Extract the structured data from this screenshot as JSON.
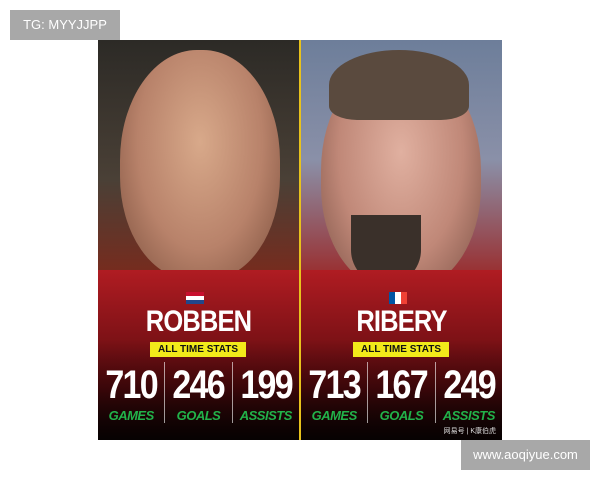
{
  "players": [
    {
      "name": "ROBBEN",
      "flag": "netherlands-flag-icon",
      "badge": "ALL TIME STATS",
      "stats": [
        {
          "value": "710",
          "label": "GAMES"
        },
        {
          "value": "246",
          "label": "GOALS"
        },
        {
          "value": "199",
          "label": "ASSISTS"
        }
      ]
    },
    {
      "name": "RIBERY",
      "flag": "france-flag-icon",
      "badge": "ALL TIME STATS",
      "stats": [
        {
          "value": "713",
          "label": "GAMES"
        },
        {
          "value": "167",
          "label": "GOALS"
        },
        {
          "value": "249",
          "label": "ASSISTS"
        }
      ]
    }
  ],
  "image_watermark": "网易号 | K康伯虎",
  "overlay_top_left": "TG: MYYJJPP",
  "overlay_bottom_right": "www.aoqiyue.com",
  "colors": {
    "divider": "#e8c21c",
    "badge": "#f2ea1a",
    "label_green": "#22b24a"
  }
}
